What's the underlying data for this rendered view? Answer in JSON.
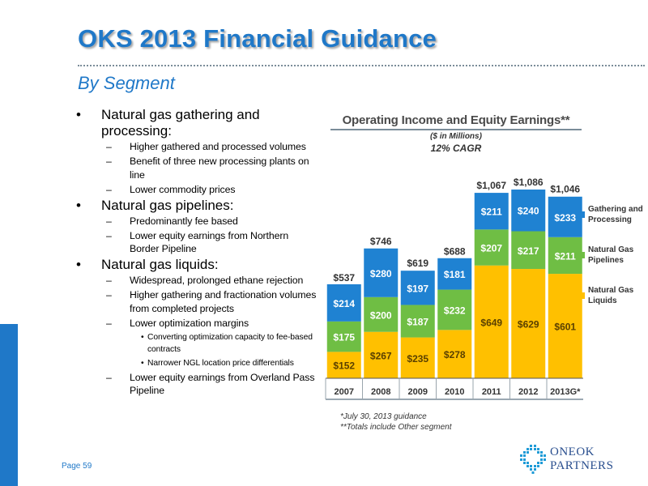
{
  "slide": {
    "title": "OKS 2013 Financial Guidance",
    "subtitle": "By Segment",
    "page_label": "Page 59"
  },
  "bullets": {
    "g1": {
      "heading": "Natural gas gathering and processing:",
      "items": [
        "Higher gathered and processed volumes",
        "Benefit of three new processing plants on line",
        "Lower commodity prices"
      ]
    },
    "g2": {
      "heading": "Natural gas pipelines:",
      "items": [
        "Predominantly fee based",
        "Lower equity earnings from Northern Border Pipeline"
      ]
    },
    "g3": {
      "heading": "Natural gas liquids:",
      "items": [
        "Widespread, prolonged ethane rejection",
        "Higher gathering and fractionation volumes from completed projects",
        "Lower optimization margins",
        "Lower equity earnings from Overland Pass Pipeline"
      ],
      "subitems": [
        "Converting optimization capacity  to fee-based contracts",
        "Narrower NGL location price differentials"
      ]
    },
    "bullet_char": "•",
    "dash_char": "–"
  },
  "chart_data": {
    "type": "bar",
    "stacked": true,
    "title": "Operating Income and Equity Earnings**",
    "units_label": "($ in Millions)",
    "cagr_label": "12% CAGR",
    "categories": [
      "2007",
      "2008",
      "2009",
      "2010",
      "2011",
      "2012",
      "2013G*"
    ],
    "series": [
      {
        "name": "Natural Gas Liquids",
        "color": "#ffc000",
        "values": [
          152,
          267,
          235,
          278,
          649,
          629,
          601
        ]
      },
      {
        "name": "Natural Gas Pipelines",
        "color": "#6fbe44",
        "values": [
          175,
          200,
          187,
          232,
          207,
          217,
          211
        ]
      },
      {
        "name": "Gathering and Processing",
        "color": "#1f82d2",
        "values": [
          214,
          280,
          197,
          181,
          211,
          240,
          233
        ]
      }
    ],
    "value_labels": [
      [
        "$152",
        "$267",
        "$235",
        "$278",
        "$649",
        "$629",
        "$601"
      ],
      [
        "$175",
        "$200",
        "$187",
        "$232",
        "$207",
        "$217",
        "$211"
      ],
      [
        "$214",
        "$280",
        "$197",
        "$181",
        "$211",
        "$240",
        "$233"
      ]
    ],
    "totals": [
      537,
      746,
      619,
      688,
      1067,
      1086,
      1046
    ],
    "total_labels": [
      "$537",
      "$746",
      "$619",
      "$688",
      "$1,067",
      "$1,086",
      "$1,046"
    ],
    "ylim": [
      0,
      1100
    ],
    "grid": false,
    "legend_position": "right",
    "legend": [
      {
        "label": "Gathering and Processing",
        "color": "#1f82d2"
      },
      {
        "label": "Natural Gas Pipelines",
        "color": "#6fbe44"
      },
      {
        "label": "Natural Gas Liquids",
        "color": "#ffc000"
      }
    ]
  },
  "notes": {
    "n1": "*July 30, 2013 guidance",
    "n2": "**Totals include Other segment"
  },
  "logo": {
    "line1": "ONEOK",
    "line2": "PARTNERS",
    "color": "#2a4f8f"
  },
  "colors": {
    "brand_blue": "#1f78c8",
    "rule_gray": "#7a8c99"
  }
}
